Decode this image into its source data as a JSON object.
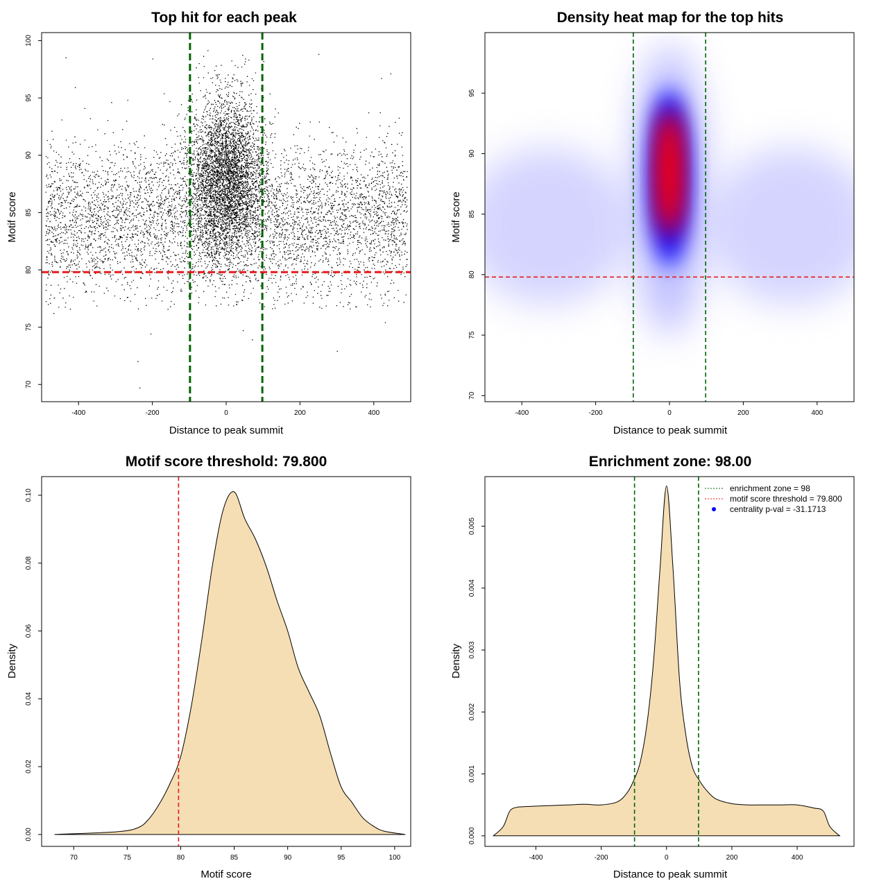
{
  "chart_data": [
    {
      "type": "scatter",
      "title": "Top hit for each peak",
      "xlabel": "Distance to peak summit",
      "ylabel": "Motif score",
      "xlim": [
        -500,
        500
      ],
      "ylim": [
        68.5,
        100.7
      ],
      "xticks": [
        -400,
        -200,
        0,
        200,
        400
      ],
      "yticks": [
        70,
        75,
        80,
        85,
        90,
        95,
        100
      ],
      "xtick_labels": [
        "-400",
        "-200",
        "0",
        "200",
        "400"
      ],
      "ytick_labels": [
        "70",
        "75",
        "80",
        "85",
        "90",
        "95",
        "100"
      ],
      "x_range_of_hits": [
        -490,
        490
      ],
      "background_score_mean": 84.5,
      "background_score_sd": 3.2,
      "central_score_mean": 88,
      "central_score_sd": 3.5,
      "central_cluster_width": 50,
      "ref_lines": {
        "vertical": [
          -98,
          98
        ],
        "horizontal": 79.8
      },
      "colors": {
        "points": "#000000",
        "vlines": "#006400",
        "hline": "#e31a1c"
      },
      "outliers": [
        {
          "x": -235,
          "y": 69.7
        },
        {
          "x": -240,
          "y": 72.0
        },
        {
          "x": -205,
          "y": 74.4
        },
        {
          "x": 300,
          "y": 72.9
        },
        {
          "x": 70,
          "y": 73.9
        },
        {
          "x": 45,
          "y": 74.7
        },
        {
          "x": -435,
          "y": 98.5
        },
        {
          "x": -200,
          "y": 98.4
        },
        {
          "x": 250,
          "y": 98.8
        },
        {
          "x": -410,
          "y": 95.9
        },
        {
          "x": 445,
          "y": 97.1
        },
        {
          "x": 420,
          "y": 96.7
        },
        {
          "x": -468,
          "y": 76.2
        },
        {
          "x": 430,
          "y": 75.4
        },
        {
          "x": 350,
          "y": 76.8
        },
        {
          "x": -220,
          "y": 77.5
        },
        {
          "x": 210,
          "y": 77.1
        }
      ]
    },
    {
      "type": "heatmap",
      "title": "Density heat map for the top hits",
      "xlabel": "Distance to peak summit",
      "ylabel": "Motif score",
      "xlim": [
        -500,
        500
      ],
      "ylim": [
        69.5,
        100
      ],
      "xticks": [
        -400,
        -200,
        0,
        200,
        400
      ],
      "yticks": [
        70,
        75,
        80,
        85,
        90,
        95
      ],
      "xtick_labels": [
        "-400",
        "-200",
        "0",
        "200",
        "400"
      ],
      "ytick_labels": [
        "70",
        "75",
        "80",
        "85",
        "90",
        "95"
      ],
      "ref_lines": {
        "vertical": [
          -98,
          98
        ],
        "horizontal": 79.8
      },
      "colormap": [
        "#ffffff",
        "#0000ff",
        "#ff0000"
      ],
      "colors": {
        "vlines": "#006400",
        "hline": "#e31a1c"
      }
    },
    {
      "type": "area",
      "title": "Motif score threshold: 79.800",
      "xlabel": "Motif score",
      "ylabel": "Density",
      "xlim": [
        67,
        101.5
      ],
      "ylim": [
        -0.0035,
        0.1055
      ],
      "xticks": [
        70,
        75,
        80,
        85,
        90,
        95,
        100
      ],
      "yticks": [
        0.0,
        0.02,
        0.04,
        0.06,
        0.08,
        0.1
      ],
      "xtick_labels": [
        "70",
        "75",
        "80",
        "85",
        "90",
        "95",
        "100"
      ],
      "ytick_labels": [
        "0.00",
        "0.02",
        "0.04",
        "0.06",
        "0.08",
        "0.10"
      ],
      "x": [
        68.2,
        74,
        76,
        77,
        78,
        79,
        80,
        81,
        82,
        83,
        84,
        85,
        86,
        87,
        88,
        89,
        90,
        91,
        92,
        93,
        94,
        95,
        96,
        97,
        98,
        99,
        101
      ],
      "y": [
        0,
        0.0008,
        0.002,
        0.0045,
        0.009,
        0.015,
        0.023,
        0.038,
        0.058,
        0.08,
        0.096,
        0.101,
        0.093,
        0.087,
        0.079,
        0.069,
        0.06,
        0.049,
        0.042,
        0.035,
        0.024,
        0.014,
        0.0095,
        0.005,
        0.0025,
        0.001,
        0
      ],
      "ref_lines": {
        "vertical": [
          79.8
        ]
      },
      "colors": {
        "fill": "#f5deb3",
        "line": "#000000",
        "vline": "#e31a1c"
      }
    },
    {
      "type": "area",
      "title": "Enrichment zone: 98.00",
      "xlabel": "Distance to peak summit",
      "ylabel": "Density",
      "xlim": [
        -556,
        574
      ],
      "ylim": [
        -0.00017,
        0.0058
      ],
      "xticks": [
        -400,
        -200,
        0,
        200,
        400
      ],
      "yticks": [
        0.0,
        0.001,
        0.002,
        0.003,
        0.004,
        0.005
      ],
      "xtick_labels": [
        "-400",
        "-200",
        "0",
        "200",
        "400"
      ],
      "ytick_labels": [
        "0.000",
        "0.001",
        "0.002",
        "0.003",
        "0.004",
        "0.005"
      ],
      "x": [
        -530,
        -500,
        -480,
        -460,
        -440,
        -400,
        -350,
        -300,
        -250,
        -200,
        -150,
        -120,
        -100,
        -80,
        -60,
        -40,
        -20,
        0,
        20,
        40,
        60,
        80,
        100,
        120,
        150,
        200,
        250,
        300,
        350,
        400,
        450,
        480,
        500,
        530
      ],
      "y": [
        0,
        0.00015,
        0.0004,
        0.00046,
        0.00047,
        0.00048,
        0.00049,
        0.0005,
        0.00051,
        0.0005,
        0.00055,
        0.0007,
        0.0009,
        0.0012,
        0.0018,
        0.0028,
        0.0043,
        0.00565,
        0.0043,
        0.0025,
        0.0016,
        0.0011,
        0.0009,
        0.00075,
        0.0006,
        0.00052,
        0.0005,
        0.0005,
        0.0005,
        0.0005,
        0.00045,
        0.0004,
        0.00015,
        0
      ],
      "ref_lines": {
        "vertical": [
          -98,
          98
        ]
      },
      "colors": {
        "fill": "#f5deb3",
        "line": "#000000",
        "vlines": "#006400",
        "point": "#0000ff"
      },
      "legend": {
        "position": "top-right",
        "entries": [
          "enrichment zone = 98",
          "motif score threshold = 79.800",
          "centrality p-val = -31.1713"
        ]
      }
    }
  ]
}
